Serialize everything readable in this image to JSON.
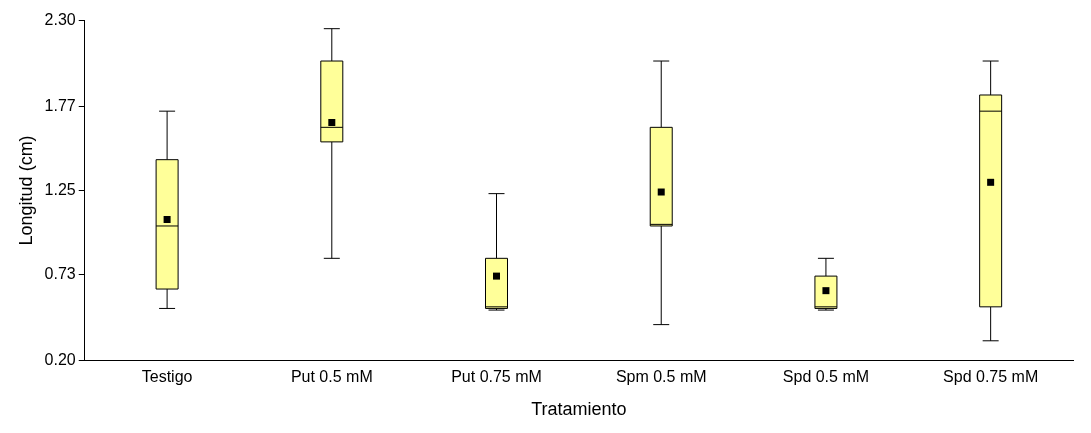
{
  "chart_data": {
    "type": "box",
    "xlabel": "Tratamiento",
    "ylabel": "Longitud (cm)",
    "categories": [
      "Testigo",
      "Put 0.5 mM",
      "Put 0.75 mM",
      "Spm 0.5 mM",
      "Spd 0.5 mM",
      "Spd 0.75 mM"
    ],
    "series": [
      {
        "color": "#ffff99",
        "boxes": [
          {
            "low": 0.52,
            "q1": 0.64,
            "median": 1.03,
            "q3": 1.44,
            "high": 1.74,
            "mean": 1.07
          },
          {
            "low": 0.83,
            "q1": 1.55,
            "median": 1.64,
            "q3": 2.05,
            "high": 2.25,
            "mean": 1.67
          },
          {
            "low": 0.51,
            "q1": 0.52,
            "median": 0.53,
            "q3": 0.83,
            "high": 1.23,
            "mean": 0.72
          },
          {
            "low": 0.42,
            "q1": 1.03,
            "median": 1.04,
            "q3": 1.64,
            "high": 2.05,
            "mean": 1.24
          },
          {
            "low": 0.51,
            "q1": 0.52,
            "median": 0.53,
            "q3": 0.72,
            "high": 0.83,
            "mean": 0.63
          },
          {
            "low": 0.32,
            "q1": 0.53,
            "median": 1.74,
            "q3": 1.84,
            "high": 2.05,
            "mean": 1.3
          }
        ]
      }
    ],
    "ylim": [
      0.2,
      2.3
    ],
    "yticks": [
      {
        "value": 0.2,
        "label": "0.20"
      },
      {
        "value": 0.73,
        "label": "0.73"
      },
      {
        "value": 1.25,
        "label": "1.25"
      },
      {
        "value": 1.77,
        "label": "1.77"
      },
      {
        "value": 2.3,
        "label": "2.30"
      }
    ],
    "grid": false,
    "legend": false,
    "marker": "square"
  }
}
